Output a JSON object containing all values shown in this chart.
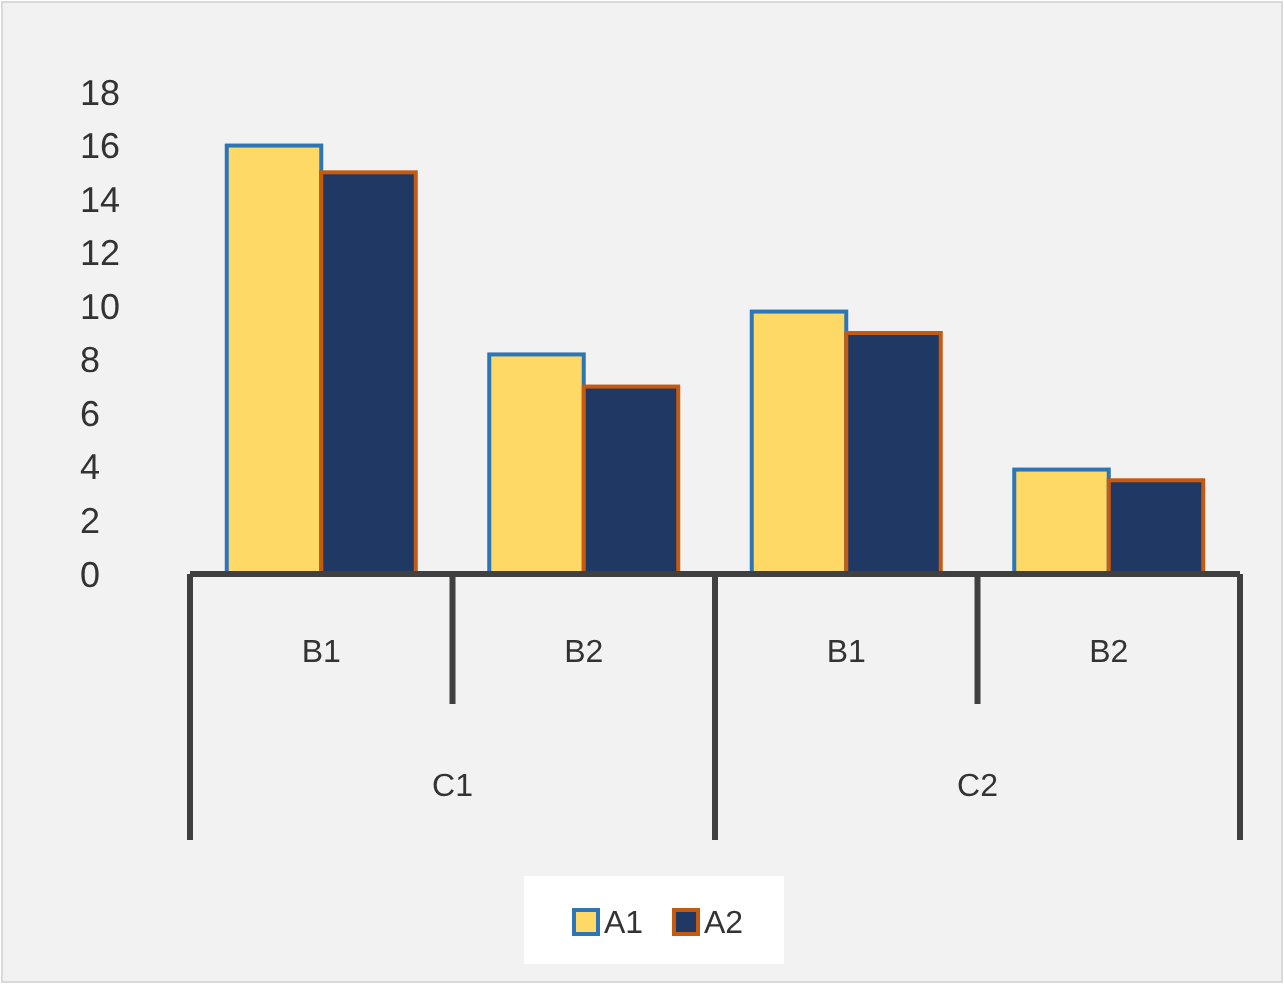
{
  "chart_data": {
    "type": "bar",
    "categories": [
      "B1",
      "B2",
      "B1",
      "B2"
    ],
    "series": [
      {
        "name": "A1",
        "color": "#ffd966",
        "values": [
          16,
          8.2,
          9.8,
          3.9
        ]
      },
      {
        "name": "A2",
        "color": "#203864",
        "values": [
          15,
          7,
          9,
          3.5
        ]
      }
    ],
    "annotations": [
      "C1",
      "C2"
    ],
    "ylim": [
      0,
      18
    ],
    "yticks": [
      0,
      2,
      4,
      6,
      8,
      10,
      12,
      14,
      16,
      18
    ],
    "grid": false,
    "legend": "bottom"
  }
}
